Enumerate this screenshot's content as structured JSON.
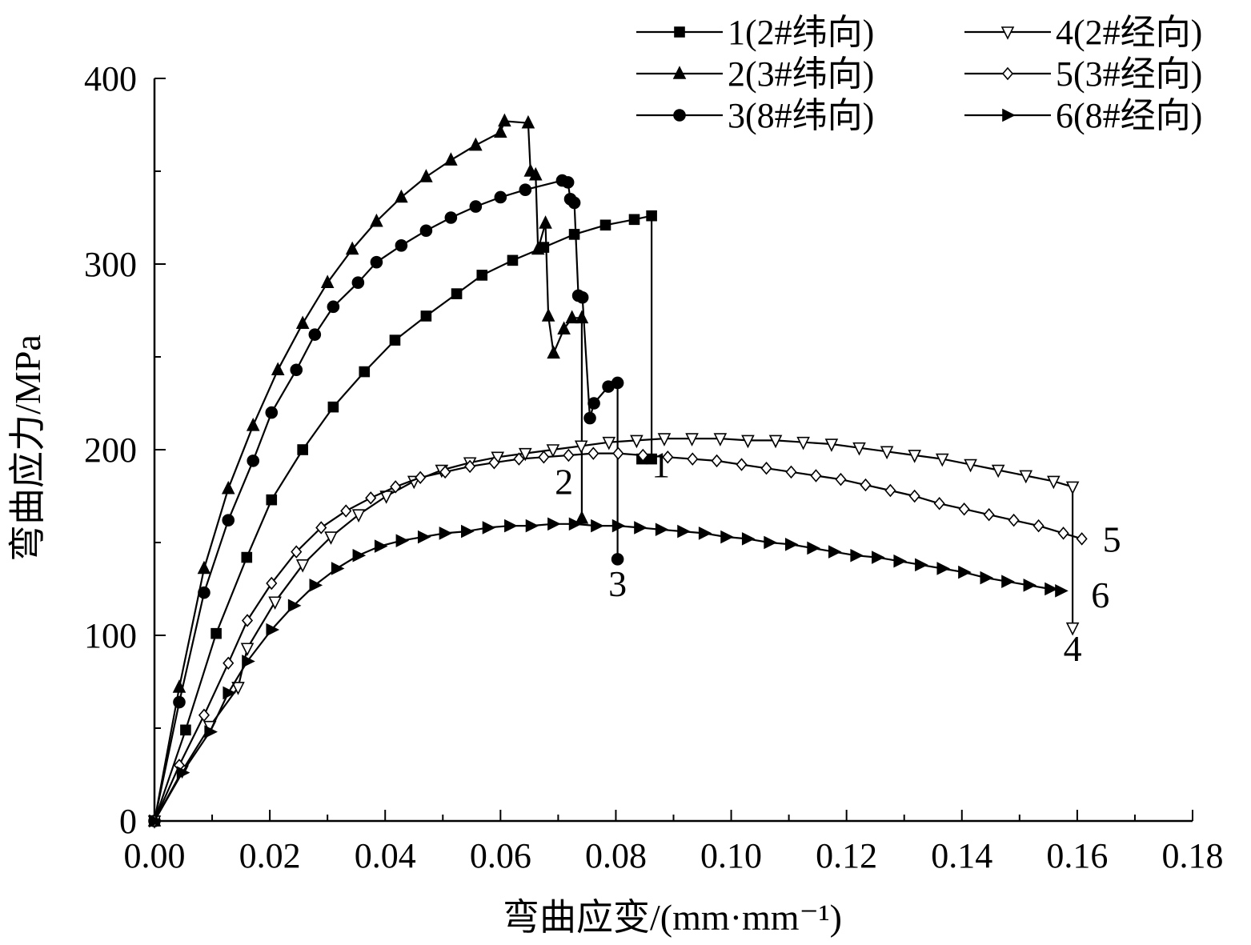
{
  "chart_data": {
    "type": "line",
    "xlabel": "弯曲应变/(mm·mm⁻¹)",
    "ylabel": "弯曲应力/MPa",
    "xlim": [
      0,
      0.18
    ],
    "ylim": [
      0,
      400
    ],
    "xticks": [
      "0.00",
      "0.02",
      "0.04",
      "0.06",
      "0.08",
      "0.10",
      "0.12",
      "0.14",
      "0.16",
      "0.18"
    ],
    "yticks": [
      "0",
      "100",
      "200",
      "300",
      "400"
    ],
    "grid": false,
    "legend_position": "top-right",
    "series": [
      {
        "name": "1(2#纬向)",
        "label": "1",
        "marker": "square",
        "points": [
          [
            0,
            0
          ],
          [
            0.0054,
            49
          ],
          [
            0.0107,
            101
          ],
          [
            0.016,
            142
          ],
          [
            0.0203,
            173
          ],
          [
            0.0257,
            200
          ],
          [
            0.031,
            223
          ],
          [
            0.0364,
            242
          ],
          [
            0.0417,
            259
          ],
          [
            0.0471,
            272
          ],
          [
            0.0524,
            284
          ],
          [
            0.0568,
            294
          ],
          [
            0.0621,
            302
          ],
          [
            0.0675,
            309
          ],
          [
            0.0728,
            316
          ],
          [
            0.0782,
            321
          ],
          [
            0.0832,
            324
          ],
          [
            0.0862,
            326
          ],
          [
            0.0862,
            195
          ],
          [
            0.0845,
            195
          ]
        ]
      },
      {
        "name": "2(3#纬向)",
        "label": "2",
        "marker": "triangle-up",
        "points": [
          [
            0,
            0
          ],
          [
            0.0043,
            72
          ],
          [
            0.0086,
            136
          ],
          [
            0.0128,
            179
          ],
          [
            0.0171,
            213
          ],
          [
            0.0214,
            243
          ],
          [
            0.0257,
            268
          ],
          [
            0.03,
            290
          ],
          [
            0.0343,
            308
          ],
          [
            0.0385,
            323
          ],
          [
            0.0428,
            336
          ],
          [
            0.0471,
            347
          ],
          [
            0.0514,
            356
          ],
          [
            0.0557,
            364
          ],
          [
            0.06,
            371
          ],
          [
            0.0607,
            377
          ],
          [
            0.0648,
            376
          ],
          [
            0.0652,
            350
          ],
          [
            0.0661,
            348
          ],
          [
            0.0665,
            308
          ],
          [
            0.0678,
            322
          ],
          [
            0.0683,
            272
          ],
          [
            0.0692,
            252
          ],
          [
            0.071,
            265
          ],
          [
            0.0724,
            271
          ],
          [
            0.0741,
            271
          ],
          [
            0.0741,
            163
          ]
        ]
      },
      {
        "name": "3(8#纬向)",
        "label": "3",
        "marker": "circle",
        "points": [
          [
            0,
            0
          ],
          [
            0.0043,
            64
          ],
          [
            0.0086,
            123
          ],
          [
            0.0128,
            162
          ],
          [
            0.0171,
            194
          ],
          [
            0.0203,
            220
          ],
          [
            0.0246,
            243
          ],
          [
            0.0278,
            262
          ],
          [
            0.031,
            277
          ],
          [
            0.0353,
            290
          ],
          [
            0.0385,
            301
          ],
          [
            0.0428,
            310
          ],
          [
            0.0471,
            318
          ],
          [
            0.0514,
            325
          ],
          [
            0.0557,
            331
          ],
          [
            0.06,
            336
          ],
          [
            0.0643,
            340
          ],
          [
            0.0707,
            345
          ],
          [
            0.0717,
            344
          ],
          [
            0.0721,
            335
          ],
          [
            0.0728,
            333
          ],
          [
            0.0735,
            283
          ],
          [
            0.0742,
            282
          ],
          [
            0.0755,
            217
          ],
          [
            0.0762,
            225
          ],
          [
            0.0787,
            234
          ],
          [
            0.0803,
            236
          ],
          [
            0.0803,
            141
          ]
        ]
      },
      {
        "name": "4(2#经向)",
        "label": "4",
        "marker": "triangle-down",
        "points": [
          [
            0,
            0
          ],
          [
            0.0048,
            27
          ],
          [
            0.0096,
            51
          ],
          [
            0.0145,
            72
          ],
          [
            0.0161,
            93
          ],
          [
            0.0209,
            118
          ],
          [
            0.0257,
            138
          ],
          [
            0.0306,
            153
          ],
          [
            0.0354,
            165
          ],
          [
            0.0402,
            175
          ],
          [
            0.045,
            183
          ],
          [
            0.0498,
            189
          ],
          [
            0.0547,
            193
          ],
          [
            0.0595,
            196
          ],
          [
            0.0643,
            198
          ],
          [
            0.0691,
            200
          ],
          [
            0.074,
            202
          ],
          [
            0.0788,
            204
          ],
          [
            0.0836,
            205
          ],
          [
            0.0884,
            206
          ],
          [
            0.0932,
            206
          ],
          [
            0.0981,
            206
          ],
          [
            0.1029,
            205
          ],
          [
            0.1077,
            205
          ],
          [
            0.1125,
            204
          ],
          [
            0.1174,
            203
          ],
          [
            0.1222,
            201
          ],
          [
            0.127,
            199
          ],
          [
            0.1318,
            197
          ],
          [
            0.1366,
            195
          ],
          [
            0.1415,
            192
          ],
          [
            0.1463,
            189
          ],
          [
            0.1511,
            186
          ],
          [
            0.1559,
            183
          ],
          [
            0.1592,
            180
          ],
          [
            0.1592,
            104
          ]
        ]
      },
      {
        "name": "5(3#经向)",
        "label": "5",
        "marker": "diamond",
        "points": [
          [
            0,
            0
          ],
          [
            0.0043,
            30
          ],
          [
            0.0086,
            57
          ],
          [
            0.0128,
            85
          ],
          [
            0.0161,
            108
          ],
          [
            0.0203,
            128
          ],
          [
            0.0246,
            145
          ],
          [
            0.0289,
            158
          ],
          [
            0.0332,
            167
          ],
          [
            0.0375,
            174
          ],
          [
            0.0418,
            180
          ],
          [
            0.0461,
            185
          ],
          [
            0.0504,
            188
          ],
          [
            0.0547,
            191
          ],
          [
            0.0589,
            193
          ],
          [
            0.0632,
            195
          ],
          [
            0.0675,
            196
          ],
          [
            0.0718,
            197
          ],
          [
            0.0761,
            198
          ],
          [
            0.0804,
            198
          ],
          [
            0.0847,
            197
          ],
          [
            0.089,
            196
          ],
          [
            0.0933,
            195
          ],
          [
            0.0975,
            194
          ],
          [
            0.1018,
            192
          ],
          [
            0.1061,
            190
          ],
          [
            0.1104,
            188
          ],
          [
            0.1147,
            186
          ],
          [
            0.119,
            184
          ],
          [
            0.1233,
            181
          ],
          [
            0.1276,
            178
          ],
          [
            0.1318,
            175
          ],
          [
            0.1361,
            171
          ],
          [
            0.1404,
            168
          ],
          [
            0.1447,
            165
          ],
          [
            0.149,
            162
          ],
          [
            0.1533,
            159
          ],
          [
            0.1576,
            155
          ],
          [
            0.1608,
            152
          ]
        ]
      },
      {
        "name": "6(8#经向)",
        "label": "6",
        "marker": "triangle-right",
        "points": [
          [
            0,
            0
          ],
          [
            0.0048,
            26
          ],
          [
            0.0096,
            48
          ],
          [
            0.0128,
            69
          ],
          [
            0.0161,
            86
          ],
          [
            0.0203,
            103
          ],
          [
            0.0241,
            116
          ],
          [
            0.0278,
            127
          ],
          [
            0.0316,
            136
          ],
          [
            0.0353,
            143
          ],
          [
            0.0391,
            148
          ],
          [
            0.0428,
            151
          ],
          [
            0.0466,
            153
          ],
          [
            0.0503,
            155
          ],
          [
            0.0541,
            156
          ],
          [
            0.0578,
            158
          ],
          [
            0.0616,
            159
          ],
          [
            0.0653,
            159
          ],
          [
            0.0691,
            160
          ],
          [
            0.0728,
            160
          ],
          [
            0.0766,
            159
          ],
          [
            0.0803,
            159
          ],
          [
            0.0841,
            158
          ],
          [
            0.0878,
            157
          ],
          [
            0.0916,
            156
          ],
          [
            0.0953,
            155
          ],
          [
            0.0991,
            153
          ],
          [
            0.1028,
            152
          ],
          [
            0.1066,
            150
          ],
          [
            0.1103,
            149
          ],
          [
            0.1141,
            147
          ],
          [
            0.1178,
            145
          ],
          [
            0.1216,
            143
          ],
          [
            0.1253,
            142
          ],
          [
            0.1291,
            140
          ],
          [
            0.1328,
            138
          ],
          [
            0.1366,
            136
          ],
          [
            0.1403,
            134
          ],
          [
            0.1441,
            131
          ],
          [
            0.1478,
            129
          ],
          [
            0.1516,
            127
          ],
          [
            0.1553,
            125
          ],
          [
            0.1571,
            124
          ]
        ]
      }
    ]
  }
}
